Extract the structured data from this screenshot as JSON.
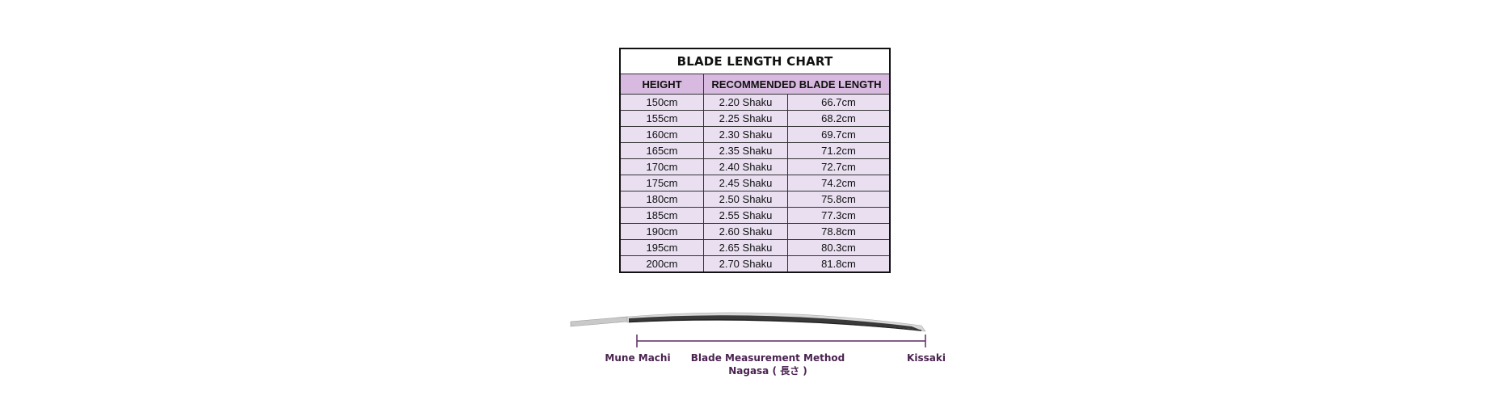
{
  "chart": {
    "title": "BLADE LENGTH CHART",
    "headers": {
      "height": "HEIGHT",
      "recommended": "RECOMMENDED BLADE LENGTH"
    },
    "rows": [
      {
        "height": "150cm",
        "shaku": "2.20 Shaku",
        "cm": "66.7cm"
      },
      {
        "height": "155cm",
        "shaku": "2.25 Shaku",
        "cm": "68.2cm"
      },
      {
        "height": "160cm",
        "shaku": "2.30 Shaku",
        "cm": "69.7cm"
      },
      {
        "height": "165cm",
        "shaku": "2.35 Shaku",
        "cm": "71.2cm"
      },
      {
        "height": "170cm",
        "shaku": "2.40 Shaku",
        "cm": "72.7cm"
      },
      {
        "height": "175cm",
        "shaku": "2.45 Shaku",
        "cm": "74.2cm"
      },
      {
        "height": "180cm",
        "shaku": "2.50 Shaku",
        "cm": "75.8cm"
      },
      {
        "height": "185cm",
        "shaku": "2.55 Shaku",
        "cm": "77.3cm"
      },
      {
        "height": "190cm",
        "shaku": "2.60 Shaku",
        "cm": "78.8cm"
      },
      {
        "height": "195cm",
        "shaku": "2.65 Shaku",
        "cm": "80.3cm"
      },
      {
        "height": "200cm",
        "shaku": "2.70 Shaku",
        "cm": "81.8cm"
      }
    ]
  },
  "diagram": {
    "left_label": "Mune Machi",
    "center_label": "Blade Measurement Method",
    "center_sublabel": "Nagasa ( 長さ )",
    "right_label": "Kissaki",
    "label_color": "#4a2350",
    "header_color": "#d8b9df",
    "row_color": "#e9dff1"
  }
}
